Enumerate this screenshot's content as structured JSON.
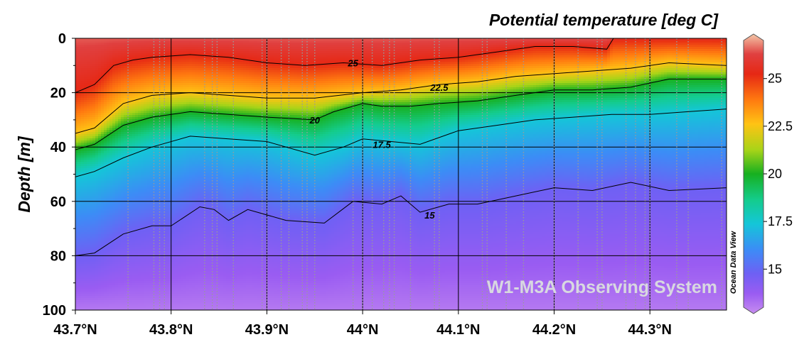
{
  "chart_data": {
    "type": "heatmap",
    "title": "Potential temperature [deg C]",
    "xlabel": "",
    "ylabel": "Depth [m]",
    "xlim": [
      43.7,
      44.38
    ],
    "ylim": [
      100,
      0
    ],
    "x_ticks": [
      43.7,
      43.8,
      43.9,
      44.0,
      44.1,
      44.2,
      44.3
    ],
    "x_tick_labels": [
      "43.7°N",
      "43.8°N",
      "43.9°N",
      "44°N",
      "44.1°N",
      "44.2°N",
      "44.3°N"
    ],
    "y_ticks": [
      0,
      20,
      40,
      60,
      80,
      100
    ],
    "y_tick_labels": [
      "0",
      "20",
      "40",
      "60",
      "80",
      "100"
    ],
    "grid": true,
    "colorbar": {
      "range": [
        13,
        27
      ],
      "ticks": [
        15,
        17.5,
        20,
        22.5,
        25
      ],
      "tick_labels": [
        "15",
        "17.5",
        "20",
        "22.5",
        "25"
      ],
      "stops": [
        {
          "value": 13,
          "color": "#c68cf0"
        },
        {
          "value": 14,
          "color": "#9a5cf2"
        },
        {
          "value": 15,
          "color": "#6e60f4"
        },
        {
          "value": 16.2,
          "color": "#3c8cf6"
        },
        {
          "value": 17.5,
          "color": "#14c6d8"
        },
        {
          "value": 18.7,
          "color": "#14cc8c"
        },
        {
          "value": 20,
          "color": "#17b020"
        },
        {
          "value": 21.2,
          "color": "#a8d418"
        },
        {
          "value": 22.5,
          "color": "#ffc314"
        },
        {
          "value": 23.7,
          "color": "#ff7a10"
        },
        {
          "value": 25,
          "color": "#e62814"
        },
        {
          "value": 26,
          "color": "#e04040"
        },
        {
          "value": 27,
          "color": "#f4c8a8"
        }
      ]
    },
    "contours": [
      {
        "level": 25,
        "label": "25",
        "label_at": [
          43.99,
          9
        ],
        "points": [
          [
            43.7,
            20
          ],
          [
            43.72,
            17
          ],
          [
            43.74,
            10
          ],
          [
            43.76,
            8
          ],
          [
            43.78,
            7
          ],
          [
            43.82,
            6
          ],
          [
            43.86,
            7
          ],
          [
            43.9,
            9
          ],
          [
            43.94,
            10
          ],
          [
            43.98,
            9
          ],
          [
            44.02,
            10
          ],
          [
            44.06,
            8
          ],
          [
            44.1,
            7
          ],
          [
            44.14,
            5
          ],
          [
            44.18,
            3
          ],
          [
            44.22,
            3
          ],
          [
            44.255,
            4
          ],
          [
            44.262,
            0
          ]
        ]
      },
      {
        "level": 22.5,
        "label": "22.5",
        "label_at": [
          44.08,
          18
        ],
        "points": [
          [
            43.7,
            35
          ],
          [
            43.72,
            33
          ],
          [
            43.75,
            24
          ],
          [
            43.78,
            21
          ],
          [
            43.82,
            20
          ],
          [
            43.86,
            21
          ],
          [
            43.9,
            22
          ],
          [
            43.95,
            22
          ],
          [
            44.0,
            20
          ],
          [
            44.04,
            19
          ],
          [
            44.08,
            17
          ],
          [
            44.12,
            16
          ],
          [
            44.16,
            14
          ],
          [
            44.2,
            13
          ],
          [
            44.24,
            12
          ],
          [
            44.28,
            11
          ],
          [
            44.32,
            9
          ],
          [
            44.38,
            10
          ]
        ]
      },
      {
        "level": 20,
        "label": "20",
        "label_at": [
          43.95,
          30
        ],
        "points": [
          [
            43.7,
            41
          ],
          [
            43.72,
            39
          ],
          [
            43.75,
            32
          ],
          [
            43.78,
            29
          ],
          [
            43.82,
            27
          ],
          [
            43.86,
            28
          ],
          [
            43.9,
            29
          ],
          [
            43.95,
            30
          ],
          [
            43.97,
            27
          ],
          [
            44.0,
            24
          ],
          [
            44.02,
            25
          ],
          [
            44.05,
            25
          ],
          [
            44.08,
            24
          ],
          [
            44.12,
            23
          ],
          [
            44.16,
            21
          ],
          [
            44.2,
            19
          ],
          [
            44.24,
            19
          ],
          [
            44.28,
            18
          ],
          [
            44.32,
            15
          ],
          [
            44.38,
            15
          ]
        ]
      },
      {
        "level": 17.5,
        "label": "17.5",
        "label_at": [
          44.02,
          39
        ],
        "points": [
          [
            43.7,
            51
          ],
          [
            43.72,
            49
          ],
          [
            43.75,
            44
          ],
          [
            43.78,
            40
          ],
          [
            43.82,
            36
          ],
          [
            43.86,
            37
          ],
          [
            43.9,
            38
          ],
          [
            43.95,
            43
          ],
          [
            43.98,
            40
          ],
          [
            44.0,
            37
          ],
          [
            44.03,
            38
          ],
          [
            44.06,
            39
          ],
          [
            44.1,
            34
          ],
          [
            44.14,
            32
          ],
          [
            44.18,
            30
          ],
          [
            44.22,
            29
          ],
          [
            44.26,
            28
          ],
          [
            44.3,
            28
          ],
          [
            44.34,
            27
          ],
          [
            44.38,
            26
          ]
        ]
      },
      {
        "level": 15,
        "label": "15",
        "label_at": [
          44.07,
          65
        ],
        "points": [
          [
            43.7,
            80
          ],
          [
            43.72,
            79
          ],
          [
            43.75,
            72
          ],
          [
            43.78,
            69
          ],
          [
            43.8,
            69
          ],
          [
            43.83,
            62
          ],
          [
            43.845,
            63
          ],
          [
            43.86,
            67
          ],
          [
            43.88,
            63
          ],
          [
            43.92,
            67
          ],
          [
            43.96,
            68
          ],
          [
            43.99,
            60
          ],
          [
            44.02,
            61
          ],
          [
            44.04,
            58
          ],
          [
            44.06,
            64
          ],
          [
            44.09,
            61
          ],
          [
            44.12,
            61
          ],
          [
            44.16,
            58
          ],
          [
            44.2,
            55
          ],
          [
            44.24,
            56
          ],
          [
            44.28,
            53
          ],
          [
            44.32,
            56
          ],
          [
            44.38,
            55
          ]
        ]
      }
    ],
    "stations": [
      43.755,
      43.782,
      43.788,
      43.793,
      43.835,
      43.843,
      43.848,
      43.865,
      43.895,
      43.9,
      43.915,
      43.923,
      43.937,
      43.942,
      43.95,
      43.99,
      44.0,
      44.01,
      44.022,
      44.028,
      44.033,
      44.05,
      44.075,
      44.08,
      44.125,
      44.13,
      44.15,
      44.168,
      44.2,
      44.225,
      44.245,
      44.25,
      44.275,
      44.285,
      44.295,
      44.3,
      44.328,
      44.34,
      44.375
    ]
  },
  "watermark": "W1-M3A Observing System",
  "side_label": "Ocean Data View"
}
